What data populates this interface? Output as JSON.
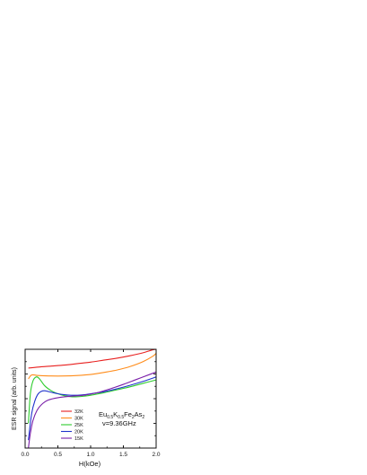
{
  "chart_data": {
    "type": "line",
    "title": "",
    "xlabel": "H(kOe)",
    "ylabel": "ESR signal (arb. units)",
    "xlim": [
      0.0,
      2.0
    ],
    "ylim": [
      0,
      100
    ],
    "x_ticks": [
      0.0,
      0.5,
      1.0,
      1.5,
      2.0
    ],
    "x_tick_labels": [
      "0.0",
      "0.5",
      "1.0",
      "1.5",
      "2.0"
    ],
    "y_tick_labels": [],
    "grid": false,
    "legend_position": "bottom-left",
    "annotation": {
      "compound_parts": [
        "Eu",
        "0.5",
        "K",
        "0.5",
        "Fe",
        "2",
        "As",
        "2"
      ],
      "frequency": "ν=9.36GHz"
    },
    "series": [
      {
        "name": "32K",
        "color": "#e8201f",
        "points": [
          [
            0.05,
            81
          ],
          [
            0.2,
            82
          ],
          [
            0.4,
            83
          ],
          [
            0.6,
            84
          ],
          [
            0.8,
            85.5
          ],
          [
            1.0,
            87
          ],
          [
            1.2,
            89
          ],
          [
            1.4,
            91
          ],
          [
            1.6,
            93.5
          ],
          [
            1.8,
            96.5
          ],
          [
            1.95,
            99.5
          ],
          [
            2.0,
            100
          ]
        ]
      },
      {
        "name": "30K",
        "color": "#ff8c1a",
        "points": [
          [
            0.05,
            70
          ],
          [
            0.1,
            74
          ],
          [
            0.2,
            73.5
          ],
          [
            0.4,
            73
          ],
          [
            0.6,
            73
          ],
          [
            0.8,
            73.5
          ],
          [
            1.0,
            74.5
          ],
          [
            1.2,
            76.5
          ],
          [
            1.4,
            79
          ],
          [
            1.6,
            82.5
          ],
          [
            1.8,
            87.5
          ],
          [
            1.95,
            93
          ],
          [
            2.0,
            96
          ]
        ]
      },
      {
        "name": "25K",
        "color": "#2ecc2e",
        "points": [
          [
            0.05,
            25
          ],
          [
            0.08,
            55
          ],
          [
            0.12,
            68
          ],
          [
            0.17,
            72
          ],
          [
            0.22,
            70
          ],
          [
            0.3,
            63
          ],
          [
            0.4,
            58
          ],
          [
            0.5,
            55
          ],
          [
            0.6,
            53
          ],
          [
            0.7,
            52
          ],
          [
            0.8,
            52
          ],
          [
            0.9,
            52.5
          ],
          [
            1.0,
            53.5
          ],
          [
            1.2,
            56
          ],
          [
            1.4,
            59
          ],
          [
            1.6,
            62
          ],
          [
            1.8,
            65.5
          ],
          [
            2.0,
            69
          ]
        ]
      },
      {
        "name": "20K",
        "color": "#1f33cc",
        "points": [
          [
            0.05,
            8
          ],
          [
            0.1,
            35
          ],
          [
            0.15,
            48
          ],
          [
            0.2,
            55
          ],
          [
            0.25,
            57.5
          ],
          [
            0.3,
            58
          ],
          [
            0.4,
            56.5
          ],
          [
            0.5,
            55
          ],
          [
            0.6,
            54
          ],
          [
            0.7,
            53.5
          ],
          [
            0.8,
            53.5
          ],
          [
            0.9,
            54
          ],
          [
            1.0,
            55
          ],
          [
            1.2,
            57
          ],
          [
            1.4,
            60
          ],
          [
            1.6,
            63.5
          ],
          [
            1.8,
            67.5
          ],
          [
            2.0,
            72
          ]
        ]
      },
      {
        "name": "15K",
        "color": "#7a1fa8",
        "points": [
          [
            0.05,
            0
          ],
          [
            0.08,
            15
          ],
          [
            0.12,
            28
          ],
          [
            0.18,
            38
          ],
          [
            0.25,
            44
          ],
          [
            0.35,
            48.5
          ],
          [
            0.5,
            51
          ],
          [
            0.7,
            52.5
          ],
          [
            0.9,
            53.5
          ],
          [
            1.1,
            56
          ],
          [
            1.3,
            60
          ],
          [
            1.5,
            64.5
          ],
          [
            1.7,
            69.5
          ],
          [
            1.9,
            74.5
          ],
          [
            2.0,
            77
          ]
        ]
      }
    ]
  }
}
